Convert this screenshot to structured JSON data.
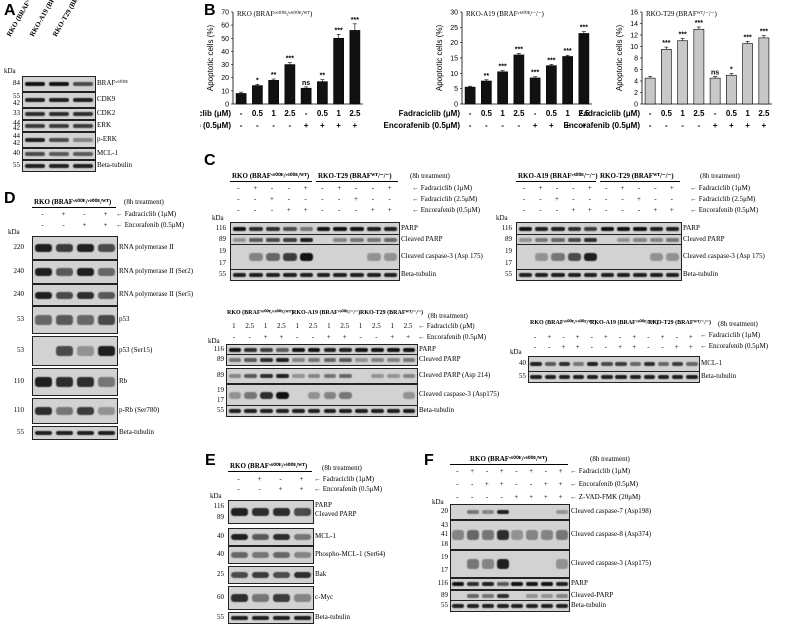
{
  "panels": {
    "A": "A",
    "B": "B",
    "C": "C",
    "D": "D",
    "E": "E",
    "F": "F"
  },
  "kda": "kDa",
  "treat8h": "(8h treatment)",
  "panelA": {
    "cols": [
      "RKO (BRAFᵛ⁶⁰⁰ᴱ/ᵛ⁶⁰⁰ᴱ/ᵂᵀ)",
      "RKO-A19 (BRAFᵛ⁶⁰⁰ᴱ/⁻/⁻)",
      "RKO-T29 (BRAFᵂᵀ/⁻/⁻)"
    ],
    "rows": [
      {
        "kda": "84",
        "label": "BRAFᵛ⁶⁰⁰ᴱ"
      },
      {
        "kda": "55\n42",
        "label": "CDK9"
      },
      {
        "kda": "33",
        "label": "CDK2"
      },
      {
        "kda": "44\n42",
        "label": "ERK"
      },
      {
        "kda": "44\n42",
        "label": "p-ERK"
      },
      {
        "kda": "40",
        "label": "MCL-1"
      },
      {
        "kda": "55",
        "label": "Beta-tubulin"
      }
    ]
  },
  "panelB": {
    "charts": [
      {
        "title": "RKO (BRAFᵛ⁶⁰⁰ᴱ/ᵛ⁶⁰⁰ᴱ/ᵂᵀ)",
        "ylabel": "Apoptotic cells (%)",
        "yticks": [
          "0",
          "10",
          "20",
          "30",
          "40",
          "50",
          "60",
          "70"
        ],
        "fad": [
          "-",
          "0.5",
          "1",
          "2.5",
          "-",
          "0.5",
          "1",
          "2.5"
        ],
        "enc": [
          "-",
          "-",
          "-",
          "-",
          "+",
          "+",
          "+",
          "+"
        ],
        "sig": [
          "",
          "*",
          "**",
          "***",
          "ns",
          "**",
          "***",
          "***"
        ]
      },
      {
        "title": "RKO-A19 (BRAFᵛ⁶⁰⁰ᴱ/⁻/⁻)",
        "ylabel": "Apoptotic cells (%)",
        "yticks": [
          "0",
          "5",
          "10",
          "15",
          "20",
          "25",
          "30"
        ],
        "fad": [
          "-",
          "0.5",
          "1",
          "2.5",
          "-",
          "0.5",
          "1",
          "2.5"
        ],
        "enc": [
          "-",
          "-",
          "-",
          "-",
          "+",
          "+",
          "+",
          "+"
        ],
        "sig": [
          "",
          "**",
          "***",
          "***",
          "***",
          "***",
          "***",
          "***"
        ]
      },
      {
        "title": "RKO-T29 (BRAFᵂᵀ/⁻/⁻)",
        "ylabel": "Apoptotic cells (%)",
        "yticks": [
          "0",
          "2",
          "4",
          "6",
          "8",
          "10",
          "12",
          "14",
          "16"
        ],
        "fad": [
          "-",
          "0.5",
          "1",
          "2.5",
          "-",
          "0.5",
          "1",
          "2.5"
        ],
        "enc": [
          "-",
          "-",
          "-",
          "-",
          "+",
          "+",
          "+",
          "+"
        ],
        "sig": [
          "",
          "***",
          "***",
          "***",
          "ns",
          "*",
          "***",
          "***"
        ]
      }
    ],
    "rowlabels": {
      "fad": "Fadraciclib (μM)",
      "enc": "Encorafenib (0.5μM)"
    }
  },
  "chart_data": [
    {
      "type": "bar",
      "title": "RKO (BRAFᵛ⁶⁰⁰ᴱ/ᵛ⁶⁰⁰ᴱ/ᵂᵀ)",
      "ylabel": "Apoptotic cells (%)",
      "ylim": [
        0,
        70
      ],
      "categories": [
        "-/-",
        "0.5/-",
        "1/-",
        "2.5/-",
        "-/+",
        "0.5/+",
        "1/+",
        "2.5/+"
      ],
      "values": [
        8,
        14,
        18,
        30,
        12,
        17,
        50,
        56
      ],
      "errors": [
        1,
        1,
        1,
        1.5,
        1,
        1.5,
        3,
        5
      ]
    },
    {
      "type": "bar",
      "title": "RKO-A19 (BRAFᵛ⁶⁰⁰ᴱ/⁻/⁻)",
      "ylabel": "Apoptotic cells (%)",
      "ylim": [
        0,
        30
      ],
      "categories": [
        "-/-",
        "0.5/-",
        "1/-",
        "2.5/-",
        "-/+",
        "0.5/+",
        "1/+",
        "2.5/+"
      ],
      "values": [
        5.5,
        7.5,
        10.5,
        16,
        8.5,
        12.5,
        15.5,
        23
      ],
      "errors": [
        0.3,
        0.4,
        0.4,
        0.5,
        0.4,
        0.4,
        0.4,
        0.6
      ]
    },
    {
      "type": "bar",
      "title": "RKO-T29 (BRAFᵂᵀ/⁻/⁻)",
      "ylabel": "Apoptotic cells (%)",
      "ylim": [
        0,
        16
      ],
      "categories": [
        "-/-",
        "0.5/-",
        "1/-",
        "2.5/-",
        "-/+",
        "0.5/+",
        "1/+",
        "2.5/+"
      ],
      "values": [
        4.5,
        9.5,
        11,
        13,
        4.5,
        5,
        10.5,
        11.5
      ],
      "errors": [
        0.3,
        0.4,
        0.4,
        0.4,
        0.3,
        0.3,
        0.4,
        0.4
      ]
    }
  ],
  "panelC": {
    "hdr1": "RKO (BRAFᵛ⁶⁰⁰ᴱ/ᵛ⁶⁰⁰ᴱ/ᵂᵀ)",
    "hdr2": "RKO-T29 (BRAFᵂᵀ/⁻/⁻)",
    "hdr3": "RKO-A19 (BRAFᵛ⁶⁰⁰ᴱ/⁻/⁻)",
    "t1": "Fadraciclib (1μM)",
    "t2": "Fadraciclib (2.5μM)",
    "t3": "Encorafenib (0.5μM)",
    "t4": "Fadraciclib (μM)",
    "rowsA": [
      {
        "kda": "116",
        "label": "PARP"
      },
      {
        "kda": "89",
        "label": "Cleaved PARP"
      },
      {
        "kda": "19\n17",
        "label": "Cleaved caspase-3 (Asp 175)"
      },
      {
        "kda": "55",
        "label": "Beta-tubulin"
      }
    ],
    "rowsB": [
      {
        "kda": "116",
        "label": "PARP"
      },
      {
        "kda": "89",
        "label": "Cleaved PARP"
      },
      {
        "kda": "89",
        "label": "Cleaved PARP (Asp 214)"
      },
      {
        "kda": "19\n17",
        "label": "Cleaved caspase-3 (Asp175)"
      },
      {
        "kda": "55",
        "label": "Beta-tubulin"
      }
    ],
    "rowsC": [
      {
        "kda": "40",
        "label": "MCL-1"
      },
      {
        "kda": "55",
        "label": "Beta-tubulin"
      }
    ],
    "dose": [
      "1",
      "2.5",
      "1",
      "2.5"
    ]
  },
  "panelD": {
    "hdr": "RKO (BRAFᵛ⁶⁰⁰ᴱ/ᵛ⁶⁰⁰ᴱ/ᵂᵀ)",
    "t1": "Fadraciclib (1μM)",
    "t2": "Encorafenib (0.5μM)",
    "fad": [
      "-",
      "+",
      "-",
      "+"
    ],
    "enc": [
      "-",
      "-",
      "+",
      "+"
    ],
    "rows": [
      {
        "kda": "220",
        "label": "RNA polymerase II"
      },
      {
        "kda": "240",
        "label": "RNA polymerase II (Ser2)"
      },
      {
        "kda": "240",
        "label": "RNA polymerase II (Ser5)"
      },
      {
        "kda": "53",
        "label": "p53"
      },
      {
        "kda": "53",
        "label": "p53 (Ser15)"
      },
      {
        "kda": "110",
        "label": "Rb"
      },
      {
        "kda": "110",
        "label": "p-Rb (Ser780)"
      },
      {
        "kda": "55",
        "label": "Beta-tubulin"
      }
    ]
  },
  "panelE": {
    "hdr": "RKO (BRAFᵛ⁶⁰⁰ᴱ/ᵛ⁶⁰⁰ᴱ/ᵂᵀ)",
    "t1": "Fadraciclib (1μM)",
    "t2": "Encorafenib (0.5μM)",
    "fad": [
      "-",
      "+",
      "-",
      "+"
    ],
    "enc": [
      "-",
      "-",
      "+",
      "+"
    ],
    "rows": [
      {
        "kda": "116\n89",
        "label": "PARP\nCleaved PARP"
      },
      {
        "kda": "40",
        "label": "MCL-1"
      },
      {
        "kda": "40",
        "label": "Phospho-MCL-1 (Ser64)"
      },
      {
        "kda": "25",
        "label": "Bak"
      },
      {
        "kda": "60",
        "label": "c-Myc"
      },
      {
        "kda": "55",
        "label": "Beta-tubulin"
      }
    ]
  },
  "panelF": {
    "hdr": "RKO (BRAFᵛ⁶⁰⁰ᴱ/ᵛ⁶⁰⁰ᴱ/ᵂᵀ)",
    "t1": "Fadraciclib (1μM)",
    "t2": "Encorafenib (0.5μM)",
    "t3": "Z-VAD-FMK (20μM)",
    "fad": [
      "-",
      "+",
      "-",
      "+",
      "-",
      "+",
      "-",
      "+"
    ],
    "enc": [
      "-",
      "-",
      "+",
      "+",
      "-",
      "-",
      "+",
      "+"
    ],
    "zvad": [
      "-",
      "-",
      "-",
      "-",
      "+",
      "+",
      "+",
      "+"
    ],
    "rows": [
      {
        "kda": "20",
        "label": "Cleaved caspase-7 (Asp198)"
      },
      {
        "kda": "43\n41\n18",
        "label": "Cleaved caspase-8 (Asp374)"
      },
      {
        "kda": "19\n17",
        "label": "Cleaved caspase-3 (Asp175)"
      },
      {
        "kda": "116",
        "label": "PARP"
      },
      {
        "kda": "89",
        "label": "Cleaved-PARP"
      },
      {
        "kda": "55",
        "label": "Beta-tubulin"
      }
    ]
  }
}
